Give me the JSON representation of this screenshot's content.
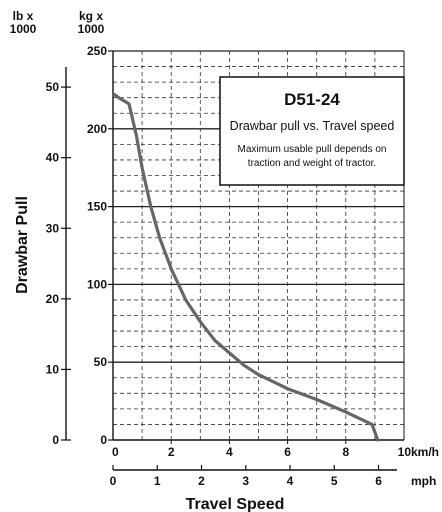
{
  "chart_data": {
    "type": "line",
    "title": "D51-24",
    "subtitle": "Drawbar pull vs. Travel speed",
    "note_lines": [
      "Maximum usable pull depends on",
      "traction and weight of tractor."
    ],
    "ylabel": "Drawbar Pull",
    "xlabel": "Travel Speed",
    "y_units": {
      "lb": "lb x\n1000",
      "lb_line1": "lb x",
      "lb_line2": "1000",
      "kg_line1": "kg x",
      "kg_line2": "1000"
    },
    "x_units": {
      "kmh": "km/h",
      "mph": "mph"
    },
    "ylim_kg": [
      0,
      250
    ],
    "xlim_kmh": [
      0,
      10
    ],
    "y_ticks_kg": [
      "0",
      "50",
      "100",
      "150",
      "200",
      "250"
    ],
    "y_ticks_lb": [
      "0",
      "10",
      "20",
      "30",
      "40",
      "50"
    ],
    "x_ticks_kmh": [
      "0",
      "2",
      "4",
      "6",
      "8",
      "10"
    ],
    "x_ticks_mph": [
      "0",
      "1",
      "2",
      "3",
      "4",
      "5",
      "6"
    ],
    "grid": true,
    "series": [
      {
        "values_kmh_kg": [
          [
            0.05,
            222
          ],
          [
            0.2,
            220
          ],
          [
            0.55,
            216
          ],
          [
            0.8,
            196
          ],
          [
            1.0,
            175
          ],
          [
            1.3,
            150
          ],
          [
            1.6,
            130
          ],
          [
            2.0,
            110
          ],
          [
            2.5,
            90
          ],
          [
            3.0,
            76
          ],
          [
            3.5,
            64
          ],
          [
            4.0,
            56
          ],
          [
            4.5,
            48
          ],
          [
            5.0,
            42
          ],
          [
            6.0,
            33
          ],
          [
            7.0,
            26
          ],
          [
            8.0,
            18
          ],
          [
            8.9,
            10
          ],
          [
            9.1,
            0
          ]
        ]
      }
    ],
    "colors": {
      "curve": "#666666",
      "major_grid": "#222222",
      "minor_grid": "#333333"
    }
  }
}
